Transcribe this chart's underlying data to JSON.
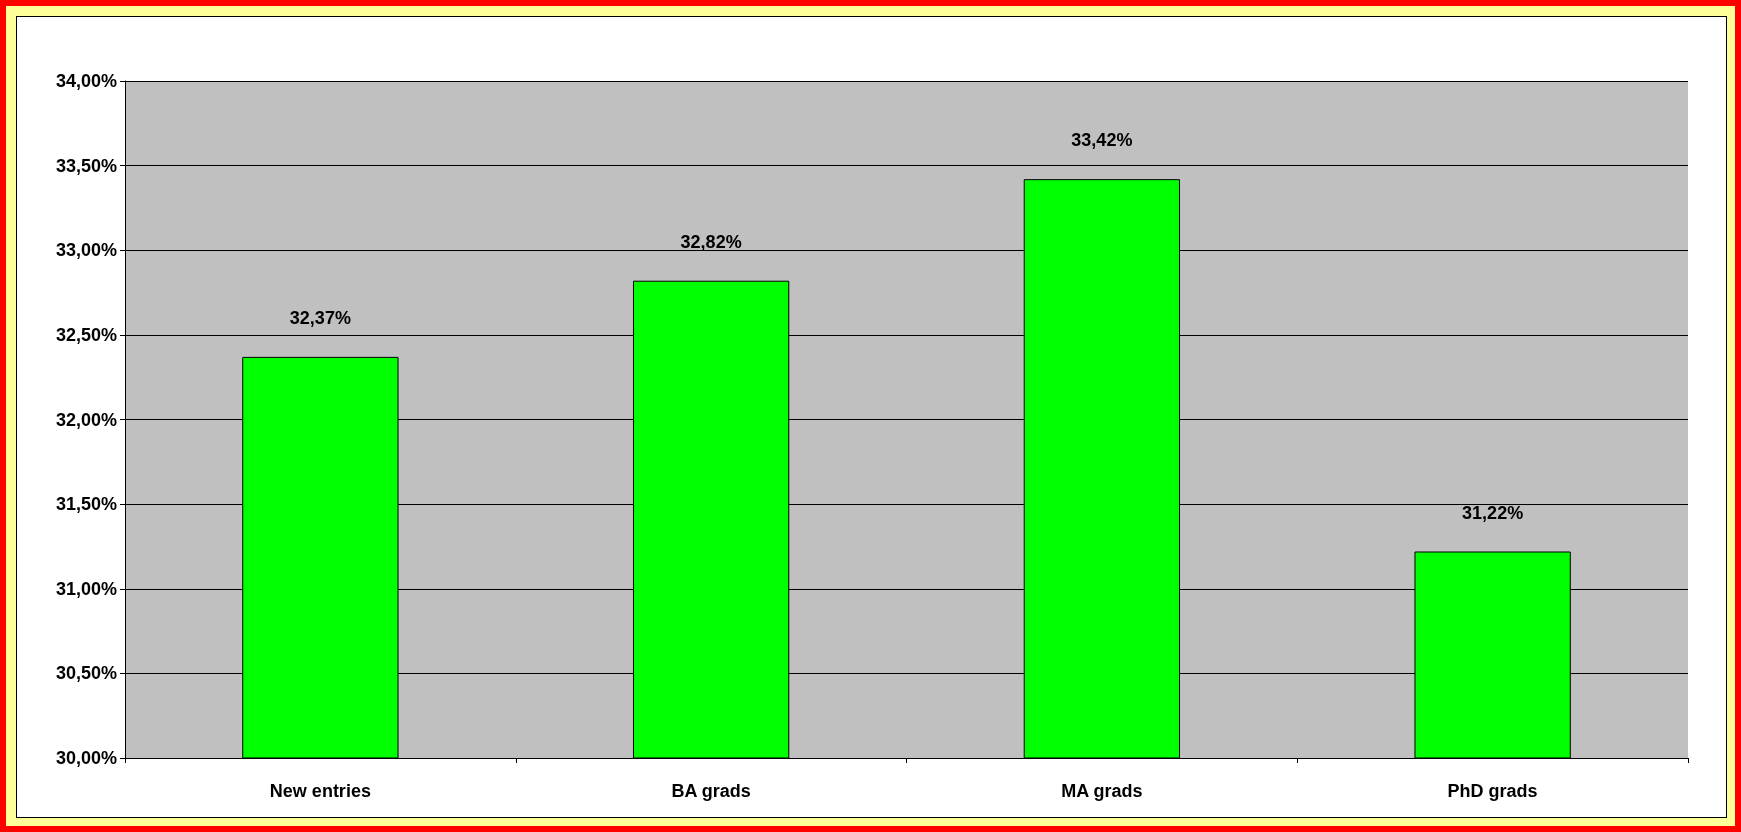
{
  "chart_data": {
    "type": "bar",
    "categories": [
      "New entries",
      "BA grads",
      "MA grads",
      "PhD grads"
    ],
    "values": [
      32.37,
      32.82,
      33.42,
      31.22
    ],
    "value_labels": [
      "32,37%",
      "32,82%",
      "33,42%",
      "31,22%"
    ],
    "color": "#00ff00",
    "ylim": [
      30,
      34
    ],
    "yticks": [
      {
        "value": 30,
        "label": "30,00%"
      },
      {
        "value": 30.5,
        "label": "30,50%"
      },
      {
        "value": 31,
        "label": "31,00%"
      },
      {
        "value": 31.5,
        "label": "31,50%"
      },
      {
        "value": 32,
        "label": "32,00%"
      },
      {
        "value": 32.5,
        "label": "32,50%"
      },
      {
        "value": 33,
        "label": "33,00%"
      },
      {
        "value": 33.5,
        "label": "33,50%"
      },
      {
        "value": 34,
        "label": "34,00%"
      }
    ],
    "grid": "y"
  }
}
